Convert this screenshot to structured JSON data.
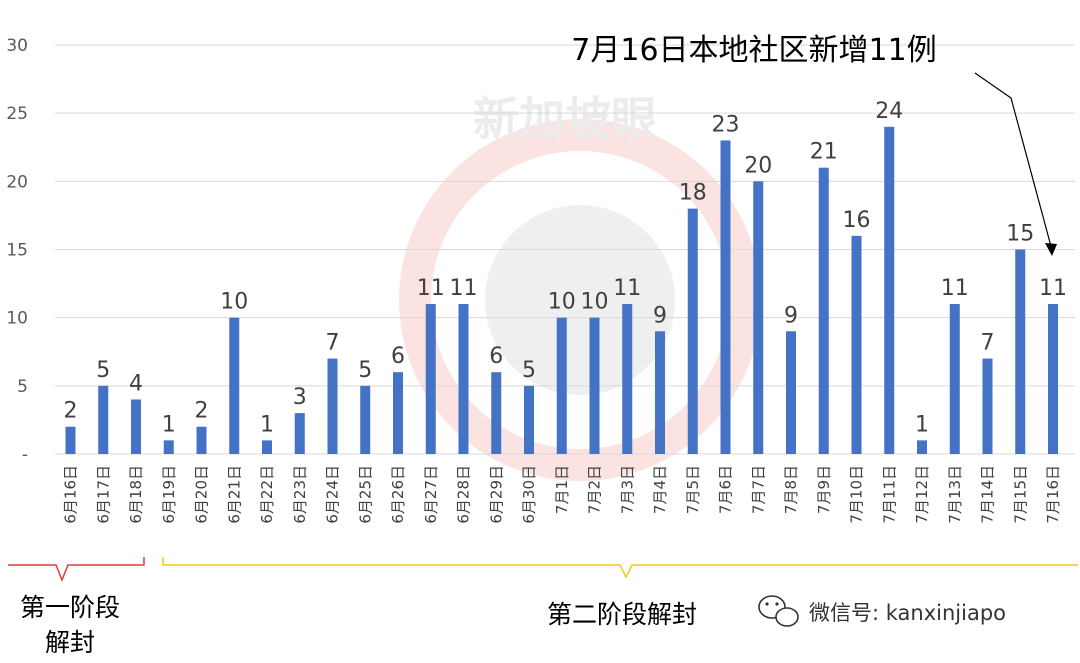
{
  "chart_data": {
    "type": "bar",
    "categories": [
      "6月16日",
      "6月17日",
      "6月18日",
      "6月19日",
      "6月20日",
      "6月21日",
      "6月22日",
      "6月23日",
      "6月24日",
      "6月25日",
      "6月26日",
      "6月27日",
      "6月28日",
      "6月29日",
      "6月30日",
      "7月1日",
      "7月2日",
      "7月3日",
      "7月4日",
      "7月5日",
      "7月6日",
      "7月7日",
      "7月8日",
      "7月9日",
      "7月10日",
      "7月11日",
      "7月12日",
      "7月13日",
      "7月14日",
      "7月15日",
      "7月16日"
    ],
    "values": [
      2,
      5,
      4,
      1,
      2,
      10,
      1,
      3,
      7,
      5,
      6,
      11,
      11,
      6,
      5,
      10,
      10,
      11,
      9,
      18,
      23,
      20,
      9,
      21,
      16,
      24,
      1,
      11,
      7,
      15,
      11
    ],
    "yticks": [
      "-",
      "5",
      "10",
      "15",
      "20",
      "25",
      "30"
    ],
    "ylim": [
      0,
      30
    ],
    "grid": true,
    "bar_color": "#4472C4",
    "annotation": "7月16日本地社区新增11例",
    "phases": [
      {
        "label_lines": [
          "第一阶段",
          "解封"
        ],
        "bracket_color": "#E23B3B",
        "from": "6月16日",
        "to": "6月18日"
      },
      {
        "label_lines": [
          "第二阶段解封"
        ],
        "bracket_color": "#F2C811",
        "from": "6月19日",
        "to": "7月16日"
      }
    ]
  },
  "watermark": "新加坡眼",
  "credit": "微信号: kanxinjiapo"
}
